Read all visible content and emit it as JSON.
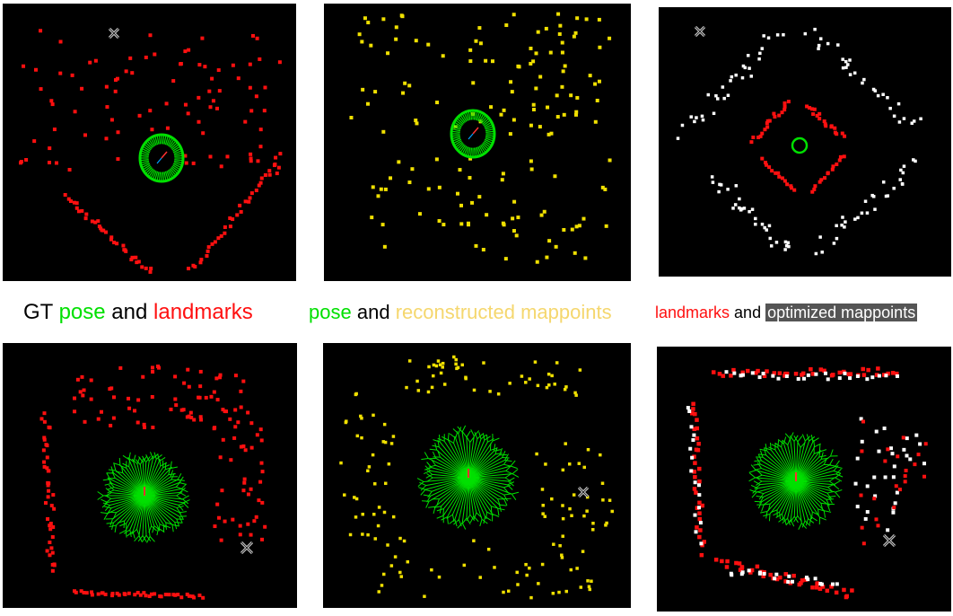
{
  "captions": {
    "gt": {
      "prefix": "GT",
      "pose": "pose",
      "and": "and",
      "landmarks": "landmarks"
    },
    "recon": {
      "pose": "pose",
      "and": "and",
      "mappoints": "reconstructed mappoints"
    },
    "optim": {
      "landmarks": "landmarks",
      "and": "and",
      "mappoints": "optimized mappoints"
    }
  },
  "colors": {
    "text": "#000000",
    "pose": "#00e000",
    "landmark": "#ff1010",
    "mappoint_reconstructed": "#f0e000",
    "mappoint_caption": "#f5d76e",
    "mappoint_optimized": "#ffffff",
    "optimized_label_bg": "#555555",
    "panel_bg": "#000000"
  },
  "panels": [
    {
      "name": "gt-top",
      "content": "ground truth pose ring and landmarks",
      "icon": "cursor-cross-icon"
    },
    {
      "name": "reconstructed-top",
      "content": "pose ring and reconstructed mappoints"
    },
    {
      "name": "optimized-top",
      "content": "landmarks and optimized mappoints",
      "icon": "cursor-cross-icon"
    },
    {
      "name": "gt-bottom",
      "content": "ground truth pose star and landmarks",
      "icon": "cursor-cross-icon"
    },
    {
      "name": "reconstructed-bottom",
      "content": "pose star and reconstructed mappoints",
      "icon": "cursor-cross-icon"
    },
    {
      "name": "optimized-bottom",
      "content": "landmarks and optimized mappoints",
      "icon": "cursor-cross-icon"
    }
  ]
}
